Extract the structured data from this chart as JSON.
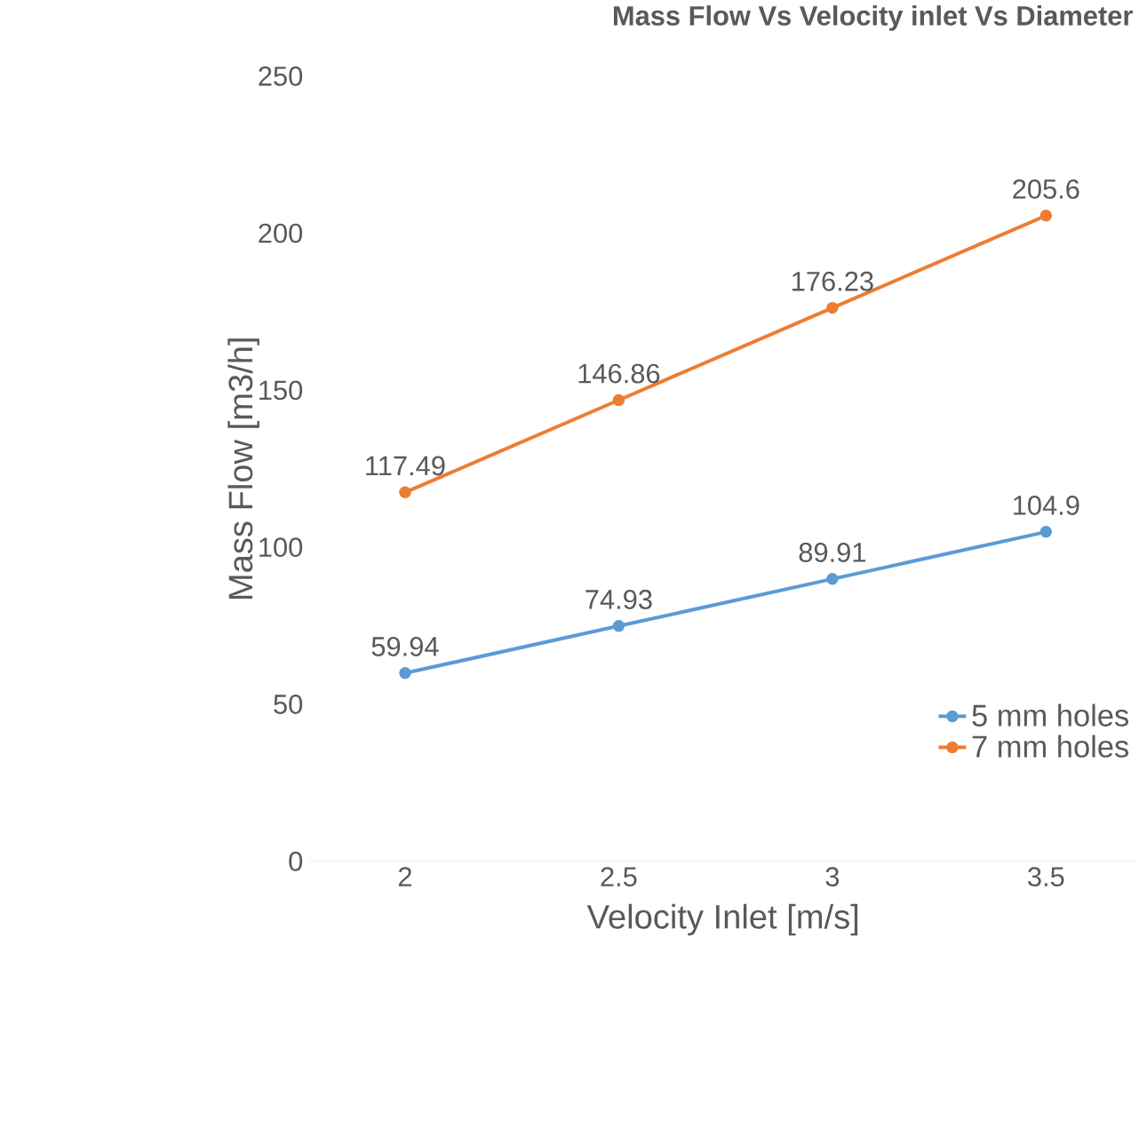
{
  "chart_data": {
    "type": "line",
    "title": "Mass Flow Vs Velocity inlet Vs Diameter",
    "xlabel": "Velocity Inlet [m/s]",
    "ylabel": "Mass Flow [m3/h]",
    "categories": [
      "2",
      "2.5",
      "3",
      "3.5"
    ],
    "series": [
      {
        "name": "5 mm holes",
        "color": "#5b9bd5",
        "values": [
          59.94,
          74.93,
          89.91,
          104.9
        ]
      },
      {
        "name": "7 mm holes",
        "color": "#ed7d31",
        "values": [
          117.49,
          146.86,
          176.23,
          205.6
        ]
      }
    ],
    "ylim": [
      0,
      250
    ],
    "yticks": [
      0,
      50,
      100,
      150,
      200,
      250
    ],
    "data_labels": true,
    "legend": "right",
    "marker": "circle",
    "line_style": "solid",
    "grid": false
  }
}
